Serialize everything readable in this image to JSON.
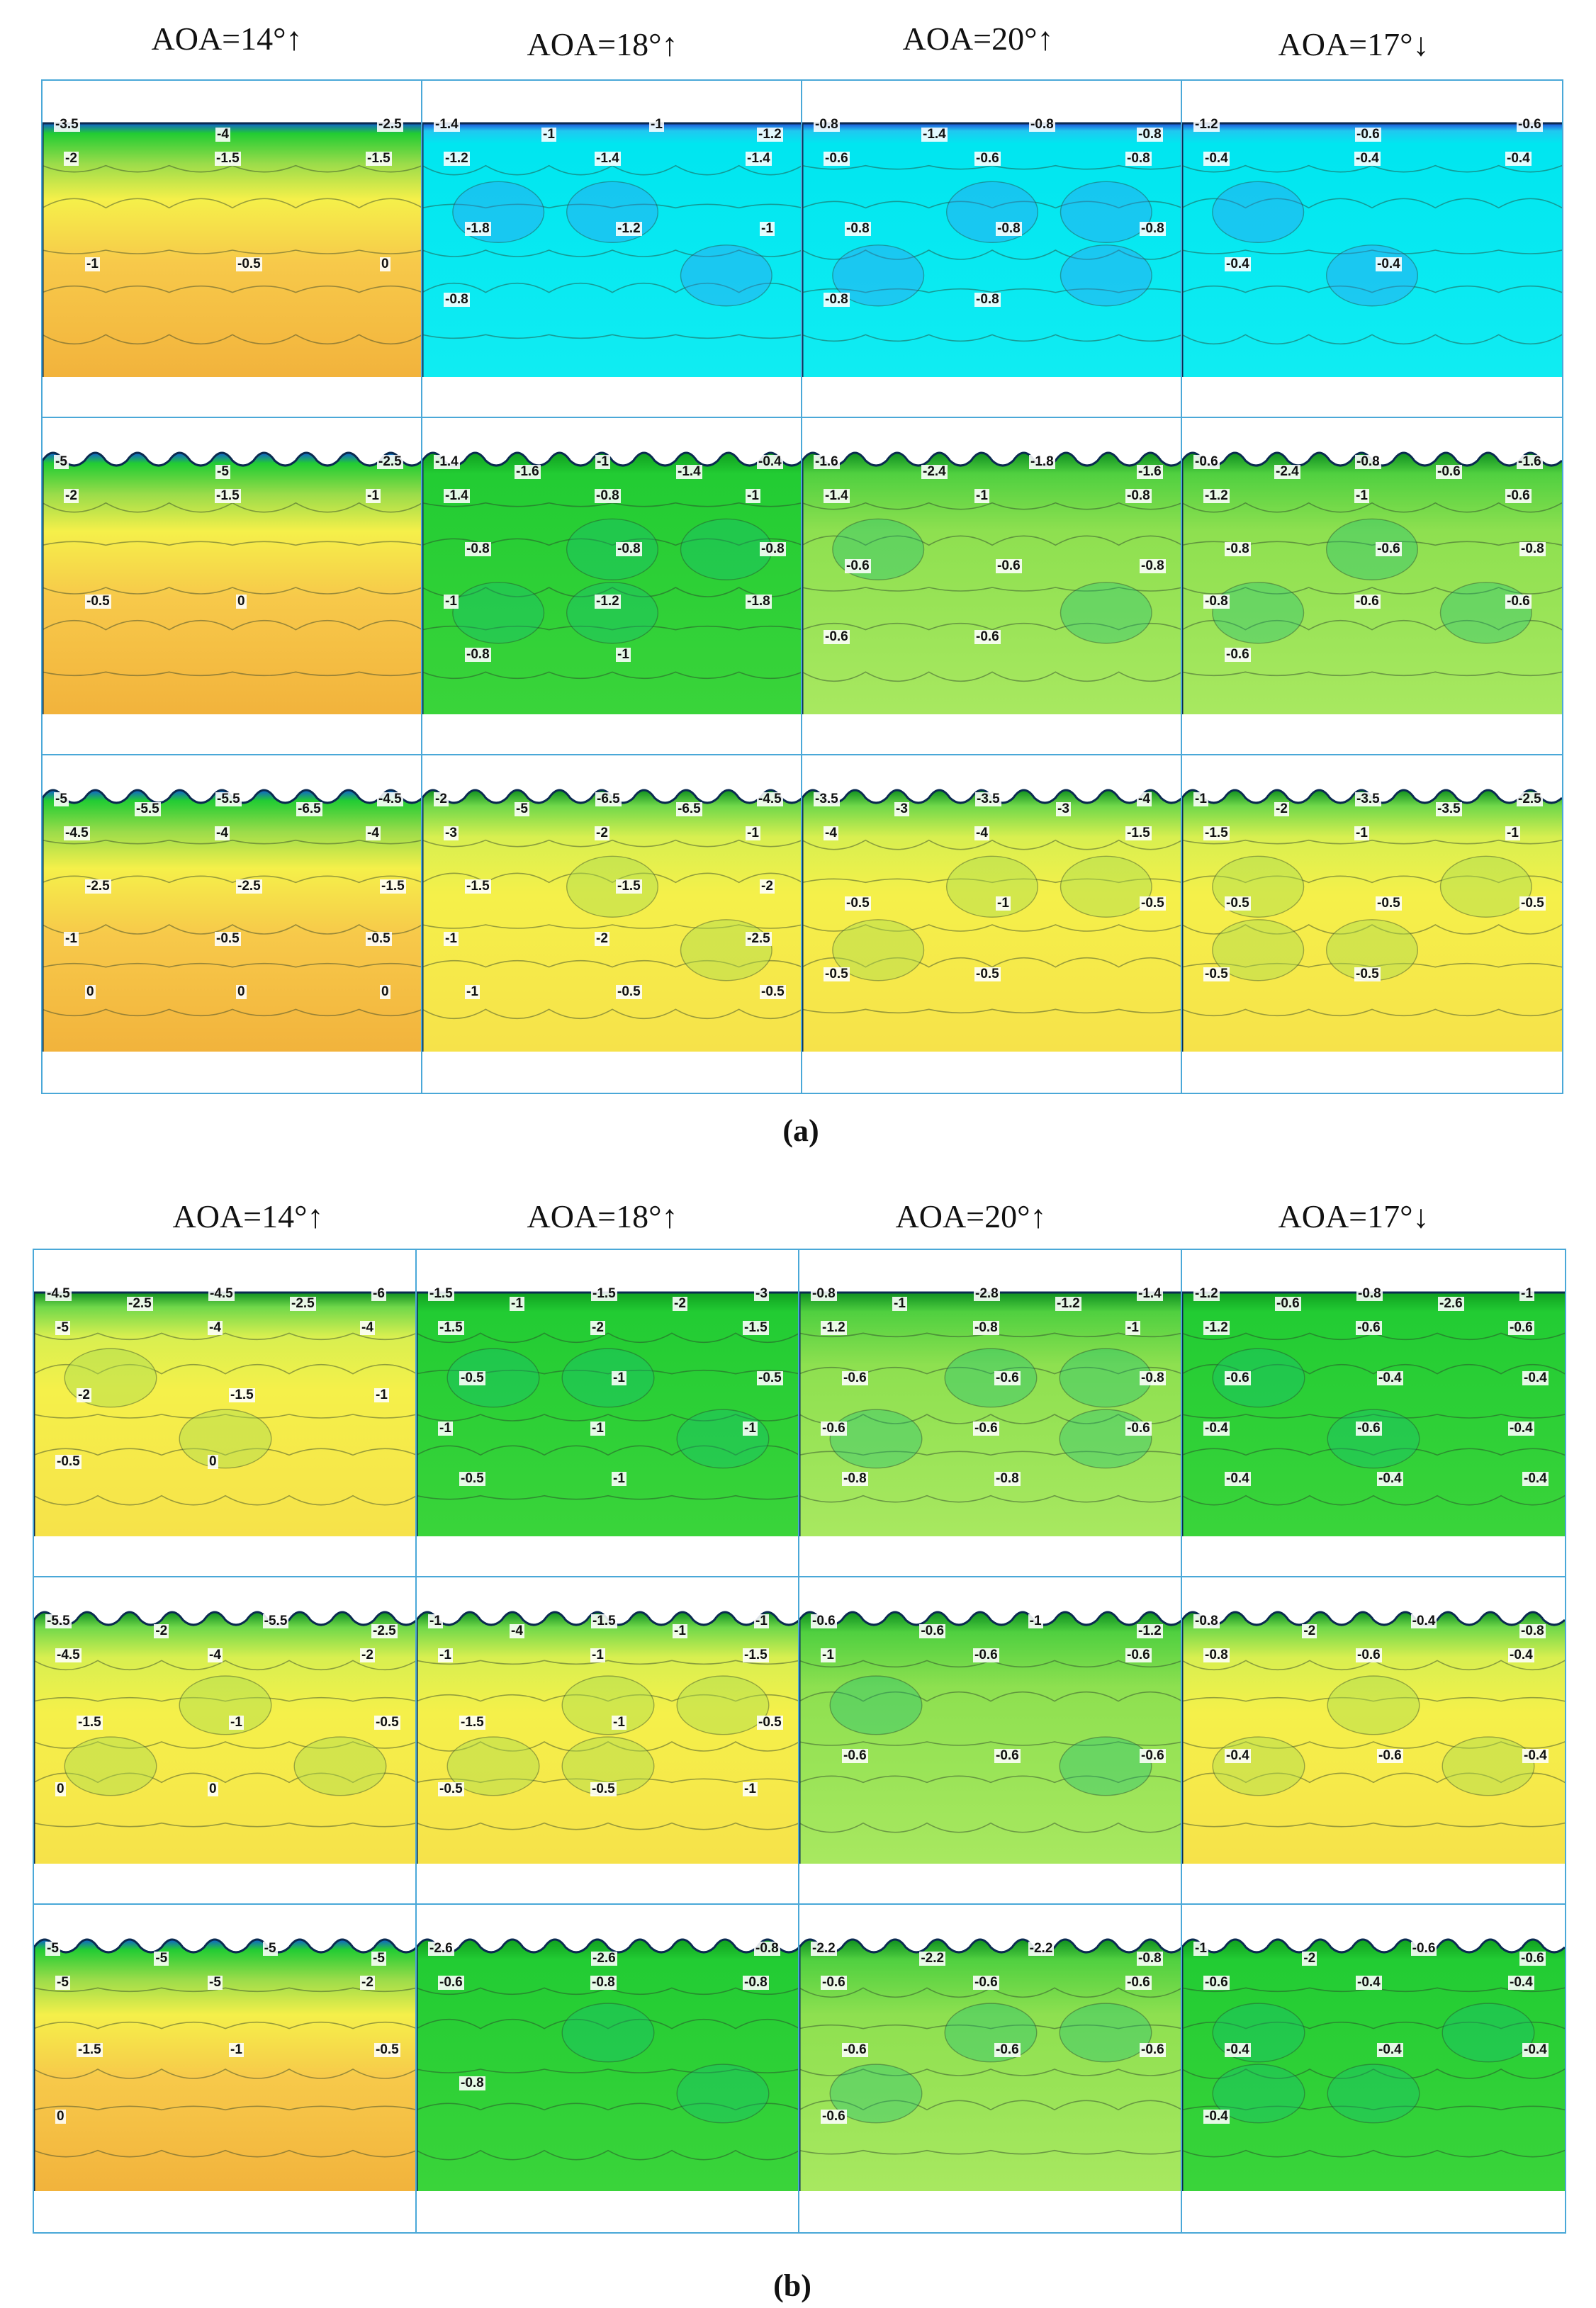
{
  "figure_a": {
    "caption": "(a)",
    "headers": [
      "AOA=14°↑",
      "AOA=18°↑",
      "AOA=20°↑",
      "AOA=17°↓"
    ],
    "rows": [
      [
        {
          "labels": [
            "-3.5",
            "-4",
            "-2.5",
            "-2",
            "-1.5",
            "-1.5",
            "-1",
            "-0.5",
            "0"
          ]
        },
        {
          "labels": [
            "-1.4",
            "-1",
            "-1",
            "-1.2",
            "-1.2",
            "-1.4",
            "-1.4",
            "-1.8",
            "-1.2",
            "-1",
            "-0.8"
          ]
        },
        {
          "labels": [
            "-0.8",
            "-1.4",
            "-0.8",
            "-0.8",
            "-0.6",
            "-0.6",
            "-0.8",
            "-0.8",
            "-0.8",
            "-0.8",
            "-0.8",
            "-0.8"
          ]
        },
        {
          "labels": [
            "-1.2",
            "-0.6",
            "-0.6",
            "-0.4",
            "-0.4",
            "-0.4",
            "-0.4",
            "-0.4"
          ]
        }
      ],
      [
        {
          "labels": [
            "-5",
            "-5",
            "-2.5",
            "-2",
            "-1.5",
            "-1",
            "-0.5",
            "0"
          ]
        },
        {
          "labels": [
            "-1.4",
            "-1.6",
            "-1",
            "-1.4",
            "-0.4",
            "-1.4",
            "-0.8",
            "-1",
            "-0.8",
            "-0.8",
            "-0.8",
            "-1",
            "-1.2",
            "-1.8",
            "-0.8",
            "-1"
          ]
        },
        {
          "labels": [
            "-1.6",
            "-2.4",
            "-1.8",
            "-1.6",
            "-1.4",
            "-1",
            "-0.8",
            "-0.6",
            "-0.6",
            "-0.8",
            "-0.6",
            "-0.6"
          ]
        },
        {
          "labels": [
            "-0.6",
            "-2.4",
            "-0.8",
            "-0.6",
            "-1.6",
            "-1.2",
            "-1",
            "-0.6",
            "-0.8",
            "-0.6",
            "-0.8",
            "-0.8",
            "-0.6",
            "-0.6",
            "-0.6"
          ]
        }
      ],
      [
        {
          "labels": [
            "-5",
            "-5.5",
            "-5.5",
            "-6.5",
            "-4.5",
            "-4.5",
            "-4",
            "-4",
            "-2.5",
            "-2.5",
            "-1.5",
            "-1",
            "-0.5",
            "-0.5",
            "0",
            "0",
            "0"
          ]
        },
        {
          "labels": [
            "-2",
            "-5",
            "-6.5",
            "-6.5",
            "-4.5",
            "-3",
            "-2",
            "-1",
            "-1.5",
            "-1.5",
            "-2",
            "-1",
            "-2",
            "-2.5",
            "-1",
            "-0.5",
            "-0.5"
          ]
        },
        {
          "labels": [
            "-3.5",
            "-3",
            "-3.5",
            "-3",
            "-4",
            "-4",
            "-4",
            "-1.5",
            "-0.5",
            "-1",
            "-0.5",
            "-0.5",
            "-0.5"
          ]
        },
        {
          "labels": [
            "-1",
            "-2",
            "-3.5",
            "-3.5",
            "-2.5",
            "-1.5",
            "-1",
            "-1",
            "-0.5",
            "-0.5",
            "-0.5",
            "-0.5",
            "-0.5"
          ]
        }
      ]
    ]
  },
  "figure_b": {
    "caption": "(b)",
    "headers": [
      "AOA=14°↑",
      "AOA=18°↑",
      "AOA=20°↑",
      "AOA=17°↓"
    ],
    "rows": [
      [
        {
          "labels": [
            "-4.5",
            "-2.5",
            "-4.5",
            "-2.5",
            "-6",
            "-5",
            "-4",
            "-4",
            "-2",
            "-1.5",
            "-1",
            "-0.5",
            "0"
          ]
        },
        {
          "labels": [
            "-1.5",
            "-1",
            "-1.5",
            "-2",
            "-3",
            "-1.5",
            "-2",
            "-1.5",
            "-0.5",
            "-1",
            "-0.5",
            "-1",
            "-1",
            "-1",
            "-0.5",
            "-1"
          ]
        },
        {
          "labels": [
            "-0.8",
            "-1",
            "-2.8",
            "-1.2",
            "-1.4",
            "-1.2",
            "-0.8",
            "-1",
            "-0.6",
            "-0.6",
            "-0.8",
            "-0.6",
            "-0.6",
            "-0.6",
            "-0.8",
            "-0.8"
          ]
        },
        {
          "labels": [
            "-1.2",
            "-0.6",
            "-0.8",
            "-2.6",
            "-1",
            "-1.2",
            "-0.6",
            "-0.6",
            "-0.6",
            "-0.4",
            "-0.4",
            "-0.4",
            "-0.6",
            "-0.4",
            "-0.4",
            "-0.4",
            "-0.4"
          ]
        }
      ],
      [
        {
          "labels": [
            "-5.5",
            "-2",
            "-5.5",
            "-2.5",
            "-4.5",
            "-4",
            "-2",
            "-1.5",
            "-1",
            "-0.5",
            "0",
            "0"
          ]
        },
        {
          "labels": [
            "-1",
            "-4",
            "-1.5",
            "-1",
            "-1",
            "-1",
            "-1",
            "-1.5",
            "-1.5",
            "-1",
            "-0.5",
            "-0.5",
            "-0.5",
            "-1"
          ]
        },
        {
          "labels": [
            "-0.6",
            "-0.6",
            "-1",
            "-1.2",
            "-1",
            "-0.6",
            "-0.6",
            "-0.6",
            "-0.6",
            "-0.6"
          ]
        },
        {
          "labels": [
            "-0.8",
            "-2",
            "-0.4",
            "-0.8",
            "-0.8",
            "-0.6",
            "-0.4",
            "-0.4",
            "-0.6",
            "-0.4"
          ]
        }
      ],
      [
        {
          "labels": [
            "-5",
            "-5",
            "-5",
            "-5",
            "-5",
            "-5",
            "-2",
            "-1.5",
            "-1",
            "-0.5",
            "0"
          ]
        },
        {
          "labels": [
            "-2.6",
            "-2.6",
            "-0.8",
            "-0.6",
            "-0.8",
            "-0.8",
            "-0.8"
          ]
        },
        {
          "labels": [
            "-2.2",
            "-2.2",
            "-2.2",
            "-0.8",
            "-0.6",
            "-0.6",
            "-0.6",
            "-0.6",
            "-0.6",
            "-0.6",
            "-0.6"
          ]
        },
        {
          "labels": [
            "-1",
            "-2",
            "-0.6",
            "-0.6",
            "-0.6",
            "-0.4",
            "-0.4",
            "-0.4",
            "-0.4",
            "-0.4",
            "-0.4"
          ]
        }
      ]
    ]
  },
  "colors": {
    "frame": "#4aa8d8",
    "cyan": "#00e6f0",
    "blue": "#1f4fd8",
    "green": "#22cc33",
    "lightgreen": "#a8e860",
    "yellow": "#f5f04a",
    "orange": "#f2b33c",
    "deeporange": "#f08a2a"
  }
}
